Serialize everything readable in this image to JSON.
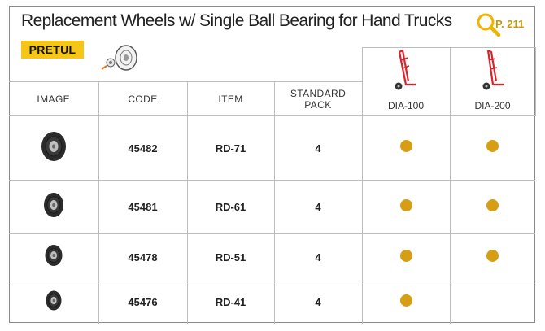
{
  "header": {
    "title": "Replacement Wheels w/ Single Ball Bearing for Hand Trucks",
    "brand": "PRETUL",
    "page_ref": "P. 211"
  },
  "table": {
    "columns": {
      "image": "IMAGE",
      "code": "CODE",
      "item": "ITEM",
      "pack_line1": "STANDARD",
      "pack_line2": "PACK"
    },
    "models": [
      "DIA-100",
      "DIA-200"
    ],
    "rows": [
      {
        "code": "45482",
        "item": "RD-71",
        "pack": "4",
        "dia100": true,
        "dia200": true
      },
      {
        "code": "45481",
        "item": "RD-61",
        "pack": "4",
        "dia100": true,
        "dia200": true
      },
      {
        "code": "45478",
        "item": "RD-51",
        "pack": "4",
        "dia100": true,
        "dia200": true
      },
      {
        "code": "45476",
        "item": "RD-41",
        "pack": "4",
        "dia100": true,
        "dia200": false
      }
    ]
  },
  "colors": {
    "brand_bg": "#f5c518",
    "dot": "#d69e14",
    "page_ref": "#c99700",
    "hand_truck": "#d8232a"
  },
  "icons": [
    "magnifier-icon",
    "wheel-icon",
    "hand-truck-icon"
  ]
}
